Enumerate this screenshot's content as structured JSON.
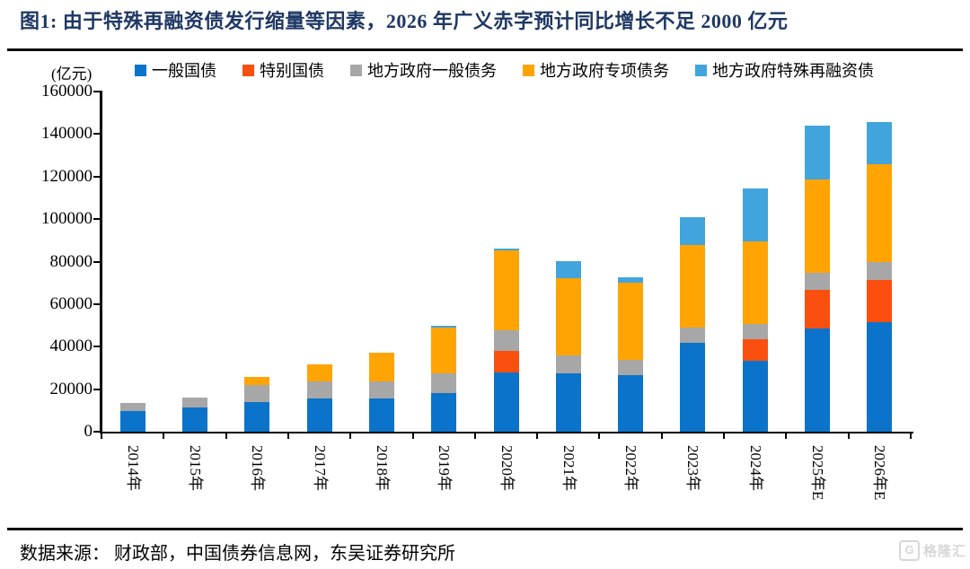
{
  "title": "图1:  由于特殊再融资债发行缩量等因素，2026 年广义赤字预计同比增长不足 2000 亿元",
  "footer": {
    "source": "数据来源：  财政部，中国债券信息网，东吴证券研究所"
  },
  "watermark": {
    "icon": "G",
    "text": "格隆汇"
  },
  "chart_data": {
    "type": "bar",
    "stacked": true,
    "title": "由于特殊再融资债发行缩量等因素，2026年广义赤字预计同比增长不足2000亿元",
    "unit_label": "(亿元)",
    "ylabel": "亿元",
    "xlabel": "",
    "ylim": [
      0,
      160000
    ],
    "y_ticks": [
      0,
      20000,
      40000,
      60000,
      80000,
      100000,
      120000,
      140000,
      160000
    ],
    "grid": false,
    "legend_position": "top",
    "categories": [
      "2014年",
      "2015年",
      "2016年",
      "2017年",
      "2018年",
      "2019年",
      "2020年",
      "2021年",
      "2022年",
      "2023年",
      "2024年",
      "2025年E",
      "2026年E"
    ],
    "series": [
      {
        "name": "一般国债",
        "color": "#0B73C9",
        "values": [
          9500,
          11200,
          14000,
          15500,
          15500,
          18300,
          27800,
          27500,
          26500,
          41600,
          33400,
          48600,
          51300
        ]
      },
      {
        "name": "特别国债",
        "color": "#FB4F0F",
        "values": [
          0,
          0,
          0,
          0,
          0,
          0,
          10000,
          0,
          0,
          0,
          10000,
          18000,
          20000
        ]
      },
      {
        "name": "地方政府一般债务",
        "color": "#A7A7A7",
        "values": [
          4000,
          5000,
          7800,
          8300,
          8300,
          9300,
          9800,
          8200,
          7200,
          7200,
          7200,
          8000,
          8500
        ]
      },
      {
        "name": "地方政府专项债务",
        "color": "#FFA402",
        "values": [
          0,
          0,
          4000,
          8000,
          13500,
          21500,
          37500,
          36500,
          36500,
          39000,
          39000,
          44000,
          46000
        ]
      },
      {
        "name": "地方政府特殊再融资债",
        "color": "#42A4DC",
        "values": [
          0,
          0,
          0,
          0,
          0,
          900,
          1000,
          8000,
          2500,
          13000,
          25000,
          25300,
          20000
        ]
      }
    ],
    "totals": [
      13500,
      16200,
      25800,
      31800,
      37300,
      50000,
      86100,
      80200,
      72700,
      100800,
      114600,
      143900,
      145800
    ]
  }
}
